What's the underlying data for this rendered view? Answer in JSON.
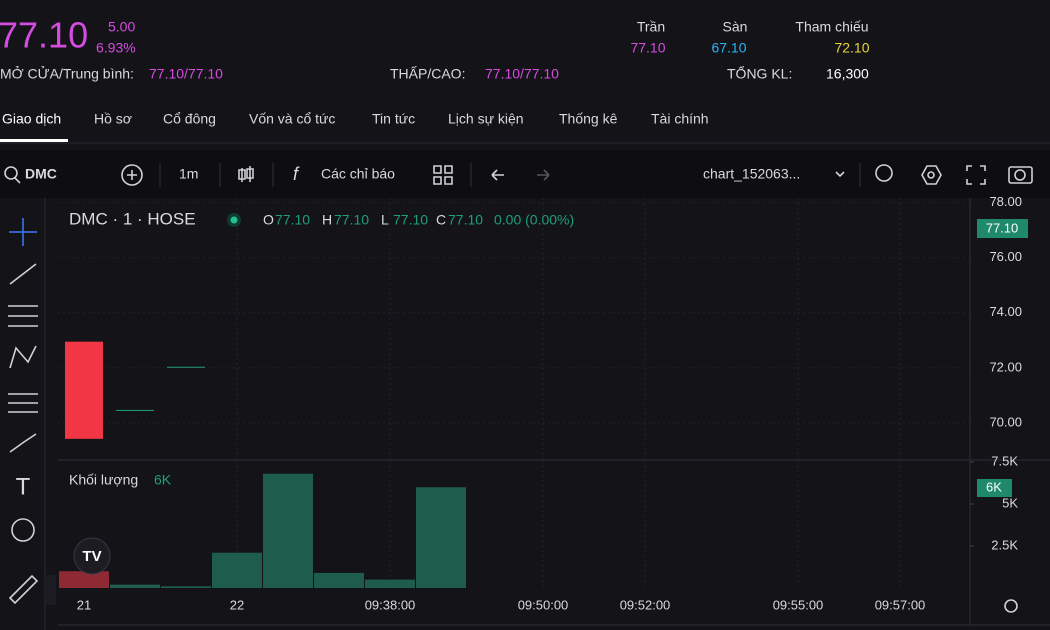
{
  "header": {
    "price": "77.10",
    "change": "5.00",
    "change_pct": "6.93%",
    "ceiling_label": "Trần",
    "ceiling": "77.10",
    "floor_label": "Sàn",
    "floor": "67.10",
    "ref_label": "Tham chiếu",
    "ref": "72.10",
    "open_avg_label": "MỞ CỬA/Trung bình:",
    "open_avg": "77.10/77.10",
    "low_high_label": "THẤP/CAO:",
    "low_high": "77.10/77.10",
    "total_vol_label": "TỔNG KL:",
    "total_vol": "16,300"
  },
  "tabs": [
    "Giao dịch",
    "Hồ sơ",
    "Cổ đông",
    "Vốn và cổ tức",
    "Tin tức",
    "Lịch sự kiện",
    "Thống kê",
    "Tài chính"
  ],
  "toolbar": {
    "symbol": "DMC",
    "interval": "1m",
    "indicators": "Các chỉ báo",
    "chart_name": "chart_152063..."
  },
  "legend": {
    "symbol": "DMC · 1 · HOSE",
    "o": "O",
    "o_val": "77.10",
    "h": "H",
    "h_val": "77.10",
    "l": "L",
    "l_val": "77.10",
    "c": "C",
    "c_val": "77.10",
    "change": "0.00 (0.00%)",
    "last_price": "77.10"
  },
  "chart_data": [
    {
      "type": "candlestick",
      "categories": [
        "21",
        null,
        null,
        "22",
        null,
        null,
        "09:38:00",
        null,
        null,
        "09:50:00",
        null,
        "09:52:00",
        null,
        null,
        "09:55:00",
        null,
        "09:57:00"
      ],
      "open": [
        72.95,
        70.47,
        72.04,
        null,
        null,
        null,
        null,
        null,
        null,
        null,
        null,
        null,
        null,
        null,
        null,
        null,
        null
      ],
      "high": [
        72.95,
        70.47,
        72.04,
        null,
        null,
        null,
        null,
        null,
        null,
        null,
        null,
        null,
        null,
        null,
        null,
        null,
        null
      ],
      "low": [
        69.42,
        70.47,
        72.04,
        null,
        null,
        null,
        null,
        null,
        null,
        null,
        null,
        null,
        null,
        null,
        null,
        null,
        null
      ],
      "close": [
        69.42,
        70.47,
        72.04,
        null,
        null,
        null,
        null,
        null,
        null,
        null,
        null,
        null,
        null,
        null,
        null,
        null,
        null
      ],
      "up_color": "#1f9e7a",
      "down_color": "#f23645",
      "ylim": [
        68.65,
        78.1
      ],
      "yticks": [
        {
          "value": 70,
          "label": "70.00"
        },
        {
          "value": 72,
          "label": "72.00"
        },
        {
          "value": 74,
          "label": "74.00"
        },
        {
          "value": 76,
          "label": "76.00"
        },
        {
          "value": 78,
          "label": "78.00"
        }
      ],
      "grid": true
    },
    {
      "type": "bar",
      "title": "Khối lượng",
      "last_value_label": "6K",
      "values": [
        1000,
        200,
        100,
        2100,
        6800,
        900,
        500,
        6000,
        null,
        null,
        null,
        null,
        null,
        null,
        null,
        null,
        null
      ],
      "colors": [
        "#8e2a33",
        "#1e5c4d",
        "#1e5c4d",
        "#1e5c4d",
        "#1e5c4d",
        "#1e5c4d",
        "#1e5c4d",
        "#1e5c4d",
        null,
        null,
        null,
        null,
        null,
        null,
        null,
        null,
        null
      ],
      "ylim": [
        0,
        7620
      ],
      "yticks": [
        {
          "value": 2500,
          "label": "2.5K"
        },
        {
          "value": 5000,
          "label": "5K"
        },
        {
          "value": 7500,
          "label": "7.5K"
        }
      ]
    }
  ]
}
